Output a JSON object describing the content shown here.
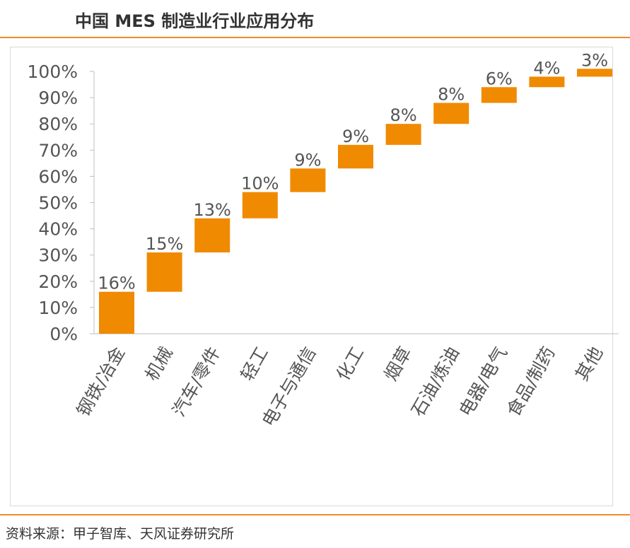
{
  "header": {
    "title": "中国 MES 制造业行业应用分布"
  },
  "footer": {
    "source": "资料来源：甲子智库、天风证券研究所"
  },
  "colors": {
    "accent": "#f08a2a",
    "bar": "#f08a00",
    "text": "#555555"
  },
  "chart_data": {
    "type": "bar",
    "subtype": "waterfall",
    "categories": [
      "钢铁/冶金",
      "机械",
      "汽车/零件",
      "轻工",
      "电子与通信",
      "化工",
      "烟草",
      "石油/炼油",
      "电器/电气",
      "食品/制药",
      "其他"
    ],
    "values": [
      16,
      15,
      13,
      10,
      9,
      9,
      8,
      8,
      6,
      4,
      3
    ],
    "data_labels": [
      "16%",
      "15%",
      "13%",
      "10%",
      "9%",
      "9%",
      "8%",
      "8%",
      "6%",
      "4%",
      "3%"
    ],
    "y_ticks": [
      "0%",
      "10%",
      "20%",
      "30%",
      "40%",
      "50%",
      "60%",
      "70%",
      "80%",
      "90%",
      "100%"
    ],
    "ylim": [
      0,
      100
    ],
    "title": "",
    "xlabel": "",
    "ylabel": "",
    "grid": false,
    "legend": "none"
  }
}
